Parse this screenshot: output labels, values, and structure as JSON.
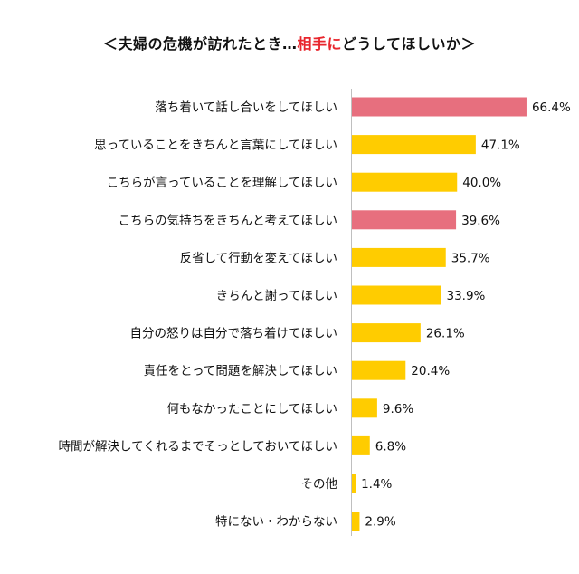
{
  "title": {
    "prefix": "＜夫婦の危機が訪れたとき…",
    "accent": "相手に",
    "suffix": "どうしてほしいか＞"
  },
  "colors": {
    "highlight": "#e76f7e",
    "normal": "#ffcc00",
    "accent_text": "#e8262d"
  },
  "chart_data": {
    "type": "bar",
    "orientation": "horizontal",
    "title": "＜夫婦の危機が訪れたとき…相手にどうしてほしいか＞",
    "unit": "%",
    "categories": [
      "落ち着いて話し合いをしてほしい",
      "思っていることをきちんと言葉にしてほしい",
      "こちらが言っていることを理解してほしい",
      "こちらの気持ちをきちんと考えてほしい",
      "反省して行動を変えてほしい",
      "きちんと謝ってほしい",
      "自分の怒りは自分で落ち着けてほしい",
      "責任をとって問題を解決してほしい",
      "何もなかったことにしてほしい",
      "時間が解決してくれるまでそっとしておいてほしい",
      "その他",
      "特にない・わからない"
    ],
    "values": [
      66.4,
      47.1,
      40.0,
      39.6,
      35.7,
      33.9,
      26.1,
      20.4,
      9.6,
      6.8,
      1.4,
      2.9
    ],
    "value_labels": [
      "66.4%",
      "47.1%",
      "40.0%",
      "39.6%",
      "35.7%",
      "33.9%",
      "26.1%",
      "20.4%",
      "9.6%",
      "6.8%",
      "1.4%",
      "2.9%"
    ],
    "highlighted": [
      true,
      false,
      false,
      true,
      false,
      false,
      false,
      false,
      false,
      false,
      false,
      false
    ],
    "xlim": [
      0,
      70
    ],
    "grid": false,
    "legend": "none"
  }
}
